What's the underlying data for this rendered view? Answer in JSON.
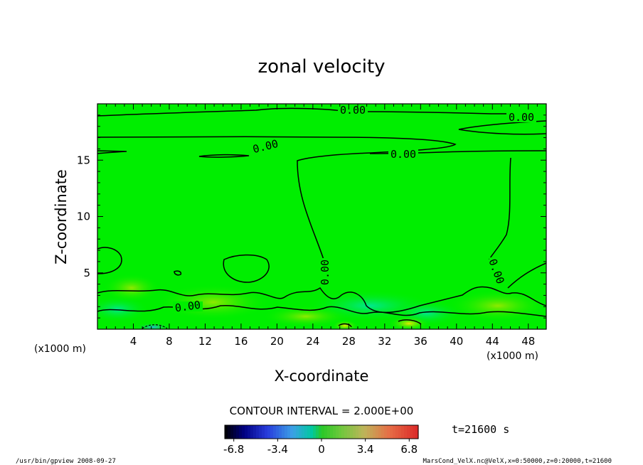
{
  "chart_data": {
    "type": "heatmap",
    "title": "zonal velocity",
    "xlabel": "X-coordinate",
    "ylabel": "Z-coordinate",
    "x_unit": "(x1000 m)",
    "y_unit": "(x1000 m)",
    "xlim": [
      0,
      50
    ],
    "ylim": [
      0,
      20
    ],
    "x_ticks": [
      "4",
      "8",
      "12",
      "16",
      "20",
      "24",
      "28",
      "32",
      "36",
      "40",
      "44",
      "48"
    ],
    "y_ticks": [
      "5",
      "10",
      "15"
    ],
    "contour_interval_text": "CONTOUR INTERVAL = 2.000E+00",
    "contour_labels": [
      "0.00",
      "0.00",
      "0.00",
      "0.00",
      "0.00",
      "0.00",
      "0.00"
    ],
    "colorbar": {
      "min": -7.5,
      "max": 7.5,
      "tick_labels": [
        "-6.8",
        "-3.4",
        "0",
        "3.4",
        "6.8"
      ],
      "tick_values": [
        -6.8,
        -3.4,
        0,
        3.4,
        6.8
      ]
    },
    "time_text": "t=21600 s",
    "footer_left": "/usr/bin/gpview   2008-09-27",
    "footer_right": "MarsCond_VelX.nc@VelX,x=0:50000,z=0:20000,t=21600",
    "colors": {
      "field_background": "#00ee00",
      "contour": "#000000"
    }
  }
}
